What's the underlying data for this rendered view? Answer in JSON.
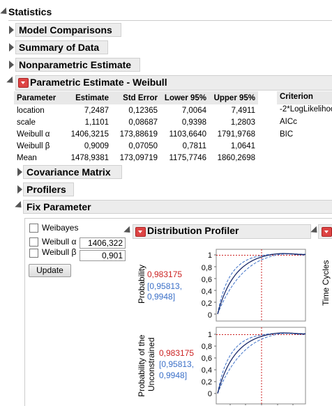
{
  "statistics": {
    "title": "Statistics"
  },
  "sections": {
    "model_comparisons": "Model Comparisons",
    "summary_of_data": "Summary of Data",
    "nonparametric": "Nonparametric Estimate",
    "parametric": "Parametric Estimate - Weibull",
    "covariance": "Covariance Matrix",
    "profilers": "Profilers",
    "fix_parameter": "Fix Parameter"
  },
  "estimates": {
    "headers": [
      "Parameter",
      "Estimate",
      "Std Error",
      "Lower 95%",
      "Upper 95%"
    ],
    "rows": [
      [
        "location",
        "7,2487",
        "0,12365",
        "7,0064",
        "7,4911"
      ],
      [
        "scale",
        "1,1101",
        "0,08687",
        "0,9398",
        "1,2803"
      ],
      [
        "Weibull α",
        "1406,3215",
        "173,88619",
        "1103,6640",
        "1791,9768"
      ],
      [
        "Weibull β",
        "0,9009",
        "0,07050",
        "0,7811",
        "1,0641"
      ],
      [
        "Mean",
        "1478,9381",
        "173,09719",
        "1175,7746",
        "1860,2698"
      ]
    ]
  },
  "criterion": {
    "header": "Criterion",
    "items": [
      "-2*LogLikelihoo",
      "AICc",
      "BIC"
    ]
  },
  "fix_param": {
    "weibayes": "Weibayes",
    "alpha_label": "Weibull α",
    "alpha_value": "1406,322",
    "beta_label": "Weibull β",
    "beta_value": "0,901",
    "update": "Update"
  },
  "profiler": {
    "title": "Distribution Profiler",
    "ylabel1": "Probability",
    "ylabel2a": "Probability of the",
    "ylabel2b": "Unconstrained",
    "value1": "0,983175",
    "ci1a": "[0,95813,",
    "ci1b": "0,9948]",
    "value2": "0,983175",
    "ci2a": "[0,95813,",
    "ci2b": "0,9948]",
    "ticks": [
      "1",
      "0,8",
      "0,6",
      "0,4",
      "0,2",
      "0"
    ],
    "right_label": "Time Cycles"
  },
  "colors": {
    "accent_red": "#cc2222",
    "ci_blue": "#3a6fc8",
    "curve": "#1a2a6a"
  }
}
